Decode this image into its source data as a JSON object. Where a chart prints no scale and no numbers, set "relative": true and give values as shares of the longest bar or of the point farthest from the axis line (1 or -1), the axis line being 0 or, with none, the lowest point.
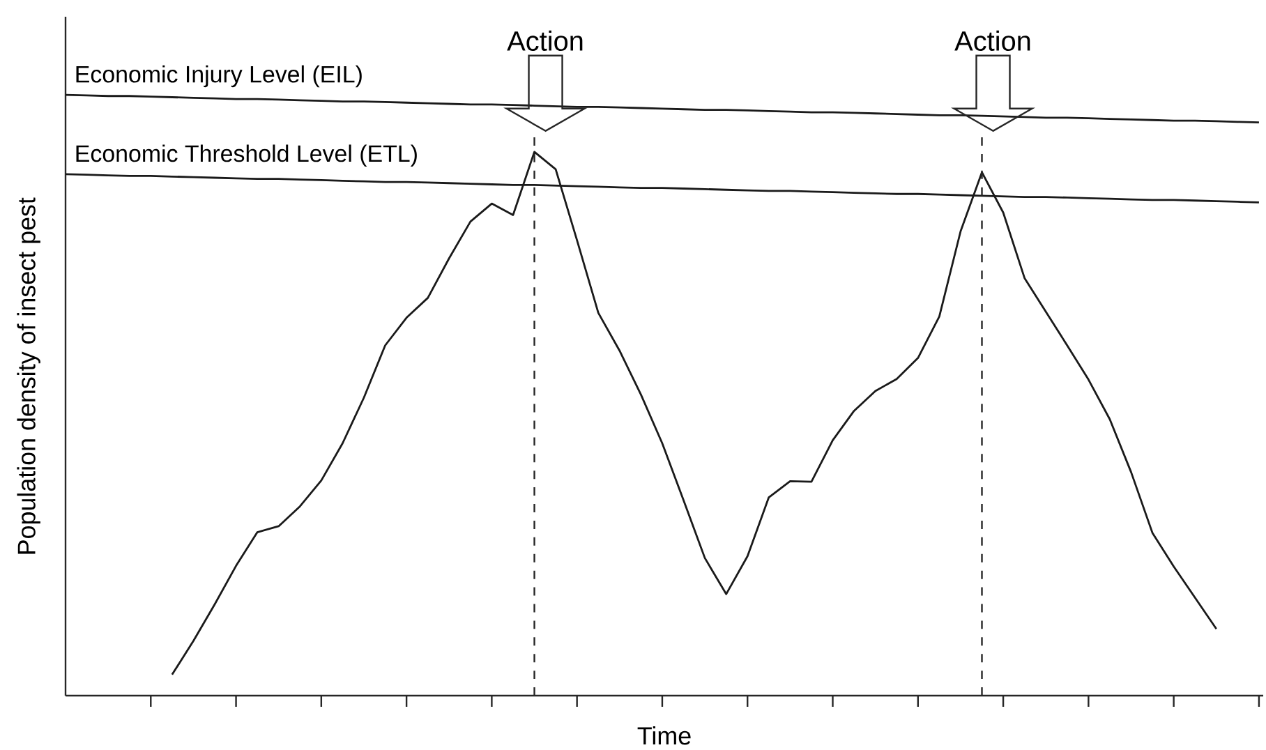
{
  "chart_data": {
    "type": "line",
    "relative": true,
    "xlabel": "Time",
    "ylabel": "Population density of insect pest",
    "categories": [
      null,
      null,
      null,
      null,
      null,
      null,
      null,
      null,
      null,
      null,
      null,
      null,
      null,
      null,
      null,
      null,
      null,
      null,
      null,
      null,
      null,
      null,
      null,
      null,
      null,
      null,
      null,
      null,
      null,
      null,
      null,
      null,
      null,
      null,
      null,
      null,
      null,
      null,
      null,
      null,
      null,
      null,
      null,
      null,
      null,
      null,
      null,
      null,
      null,
      null,
      null,
      null,
      null,
      null,
      null,
      null,
      null
    ],
    "marker": "none",
    "series": [
      {
        "name": "Economic Injury Level (EIL)",
        "color": "#1a1a1a",
        "values": [
          1.0,
          0.999,
          0.998,
          0.998,
          0.997,
          0.996,
          0.995,
          0.994,
          0.993,
          0.993,
          0.992,
          0.991,
          0.99,
          0.989,
          0.989,
          0.988,
          0.987,
          0.986,
          0.985,
          0.984,
          0.984,
          0.983,
          0.982,
          0.981,
          0.98,
          0.98,
          0.979,
          0.978,
          0.977,
          0.976,
          0.975,
          0.975,
          0.974,
          0.973,
          0.972,
          0.971,
          0.971,
          0.97,
          0.969,
          0.968,
          0.967,
          0.966,
          0.966,
          0.965,
          0.964,
          0.963,
          0.962,
          0.962,
          0.961,
          0.96,
          0.959,
          0.958,
          0.957,
          0.957,
          0.956,
          0.955,
          0.954
        ]
      },
      {
        "name": "Economic Threshold Level (ETL)",
        "color": "#1a1a1a",
        "values": [
          0.868,
          0.867,
          0.866,
          0.865,
          0.865,
          0.864,
          0.863,
          0.862,
          0.861,
          0.86,
          0.86,
          0.859,
          0.858,
          0.857,
          0.856,
          0.855,
          0.855,
          0.854,
          0.853,
          0.852,
          0.851,
          0.85,
          0.85,
          0.849,
          0.848,
          0.847,
          0.846,
          0.845,
          0.845,
          0.844,
          0.843,
          0.842,
          0.841,
          0.84,
          0.84,
          0.839,
          0.838,
          0.837,
          0.836,
          0.835,
          0.835,
          0.834,
          0.833,
          0.832,
          0.831,
          0.83,
          0.83,
          0.829,
          0.828,
          0.827,
          0.826,
          0.825,
          0.825,
          0.824,
          0.823,
          0.822,
          0.821
        ]
      },
      {
        "color": "#1a1a1a",
        "values": [
          null,
          null,
          null,
          null,
          null,
          0.035,
          0.091,
          0.152,
          0.216,
          0.272,
          0.282,
          0.315,
          0.358,
          0.42,
          0.496,
          0.583,
          0.629,
          0.662,
          0.728,
          0.789,
          0.819,
          0.8,
          0.905,
          0.876,
          0.758,
          0.637,
          0.574,
          0.501,
          0.42,
          0.325,
          0.229,
          0.169,
          0.232,
          0.33,
          0.357,
          0.356,
          0.425,
          0.474,
          0.507,
          0.527,
          0.562,
          0.631,
          0.773,
          0.871,
          0.804,
          0.695,
          0.639,
          0.583,
          0.526,
          0.46,
          0.372,
          0.271,
          0.215,
          0.163,
          0.111,
          null,
          null
        ]
      }
    ],
    "annotations": [
      "Action",
      "Action"
    ]
  }
}
